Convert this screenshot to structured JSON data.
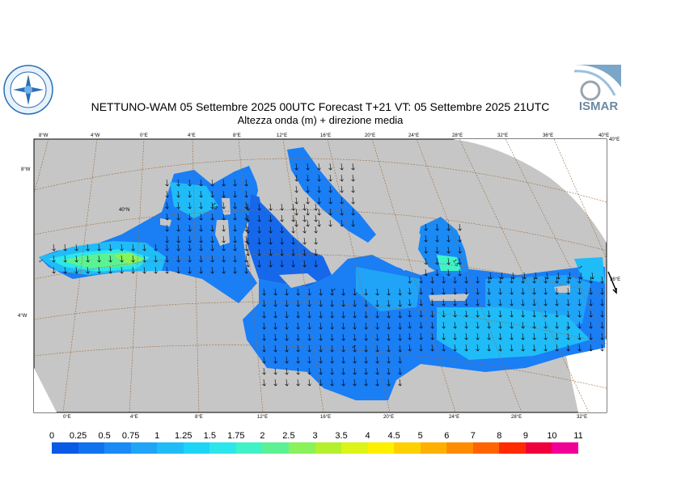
{
  "title_line1": "NETTUNO-WAM  05 Settembre 2025 00UTC Forecast T+21 VT: 05 Settembre 2025 21UTC",
  "title_line2": "Altezza onda (m) + direzione media",
  "logo_right_text": "ISMAR",
  "logo_left_text": "SERVIZIO METEOROLOGICO",
  "top_lon_labels": [
    "8°W",
    "4°W",
    "0°E",
    "4°E",
    "8°E",
    "12°E",
    "16°E",
    "20°E",
    "24°E",
    "28°E",
    "32°E",
    "36°E",
    "40°E"
  ],
  "bottom_lon_labels": [
    "0°E",
    "4°E",
    "8°E",
    "12°E",
    "16°E",
    "20°E",
    "24°E",
    "28°E",
    "32°E"
  ],
  "left_lat_labels": [
    "8°W",
    "4°W"
  ],
  "right_lat_labels": [
    "40°E",
    "36°E"
  ],
  "inner_lat_label": "40°N",
  "contour_labels": [
    "1.5",
    "1",
    "1",
    "1.5",
    "1",
    "1",
    "1"
  ],
  "colorbar": {
    "labels": [
      "0",
      "0.25",
      "0.5",
      "0.75",
      "1",
      "1.25",
      "1.5",
      "1.75",
      "2",
      "2.5",
      "3",
      "3.5",
      "4",
      "4.5",
      "5",
      "6",
      "7",
      "8",
      "9",
      "10",
      "11"
    ],
    "colors": [
      "#0a5ae6",
      "#1072ef",
      "#1a8af5",
      "#20a4f8",
      "#20bcf8",
      "#1cd4f5",
      "#2de6ec",
      "#40f2c8",
      "#5cf293",
      "#8af25a",
      "#b4f02c",
      "#dcf418",
      "#fff000",
      "#ffd000",
      "#ffb000",
      "#ff8c00",
      "#ff6400",
      "#ff2a00",
      "#f0003c",
      "#f00096"
    ]
  },
  "map_colors": {
    "land": "#c6c6c6",
    "sea_base": "#1a7ef5",
    "sea_mid": "#20a4f8",
    "sea_hi": "#26c6f6",
    "sea_peak": "#5cf293",
    "grid": "#9a6a3a"
  }
}
